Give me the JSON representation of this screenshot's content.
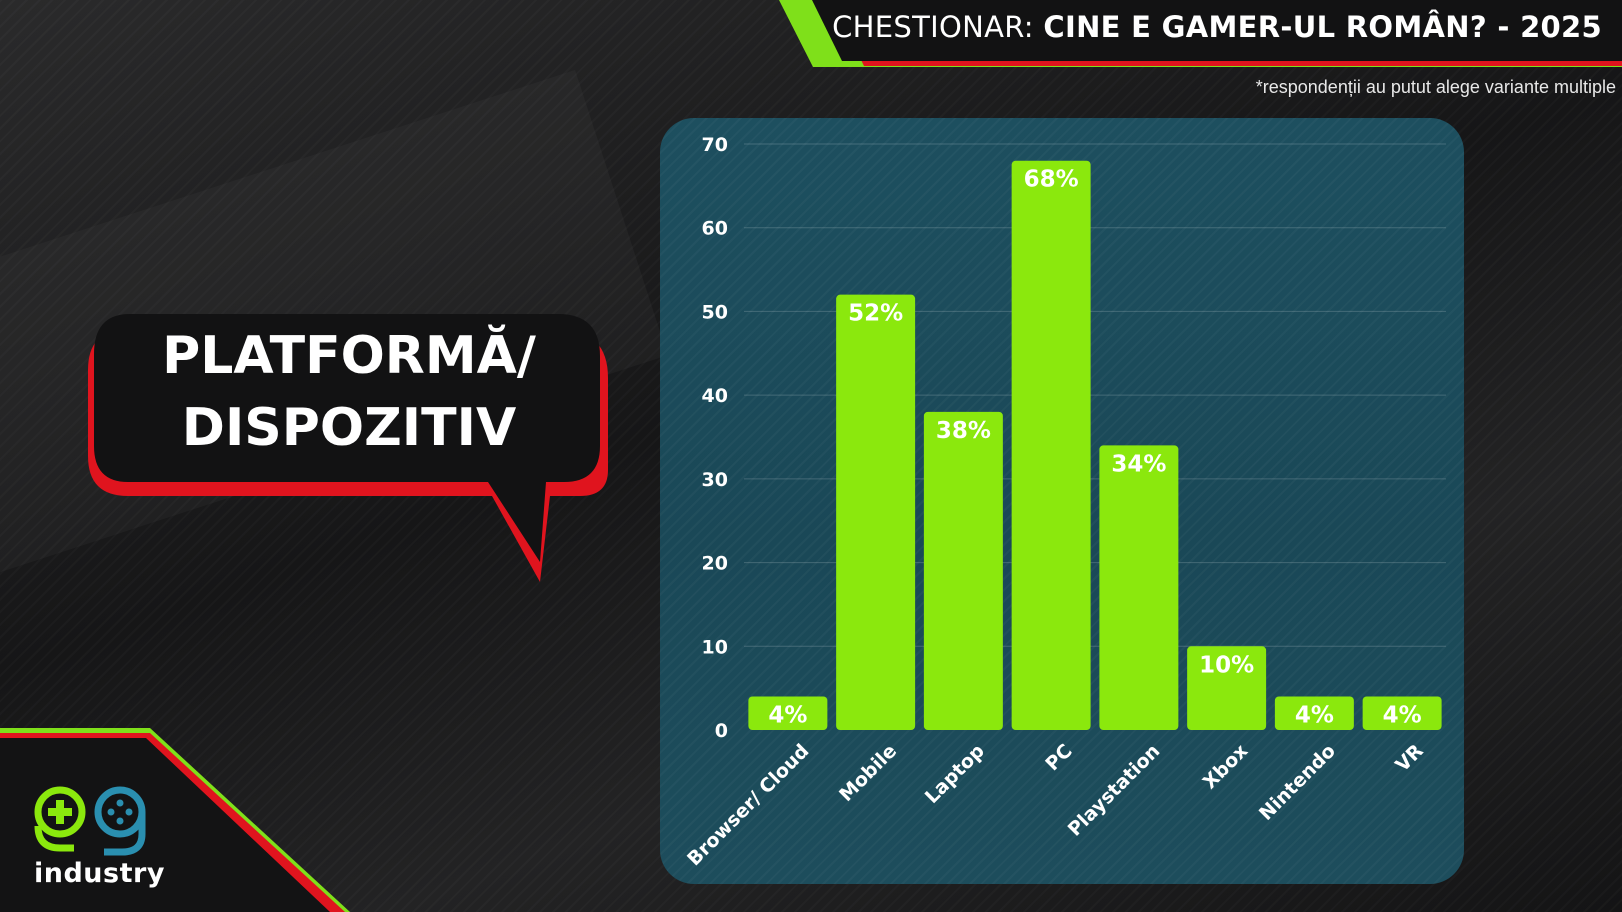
{
  "header": {
    "title_prefix": "CHESTIONAR:",
    "title_main": "CINE E GAMER-UL ROMÂN? - 2025",
    "footnote": "*respondenții au putut alege variante multiple"
  },
  "bubble": {
    "line1": "PLATFORMĂ/",
    "line2": "DISPOZITIV"
  },
  "logo": {
    "text": "industry",
    "icon": "gg-controller-logo-icon"
  },
  "colors": {
    "bar": "#8be80d",
    "accent_green": "#7fe01a",
    "accent_red": "#e0141e",
    "panel": "#1b4a59"
  },
  "chart_data": {
    "type": "bar",
    "categories": [
      "Browser/ Cloud",
      "Mobile",
      "Laptop",
      "PC",
      "Playstation",
      "Xbox",
      "Nintendo",
      "VR"
    ],
    "values": [
      4,
      52,
      38,
      68,
      34,
      10,
      4,
      4
    ],
    "labels": [
      "4%",
      "52%",
      "38%",
      "68%",
      "34%",
      "10%",
      "4%",
      "4%"
    ],
    "ylim": [
      0,
      70
    ],
    "yticks": [
      0,
      10,
      20,
      30,
      40,
      50,
      60,
      70
    ],
    "grid": true,
    "legend": "none"
  }
}
